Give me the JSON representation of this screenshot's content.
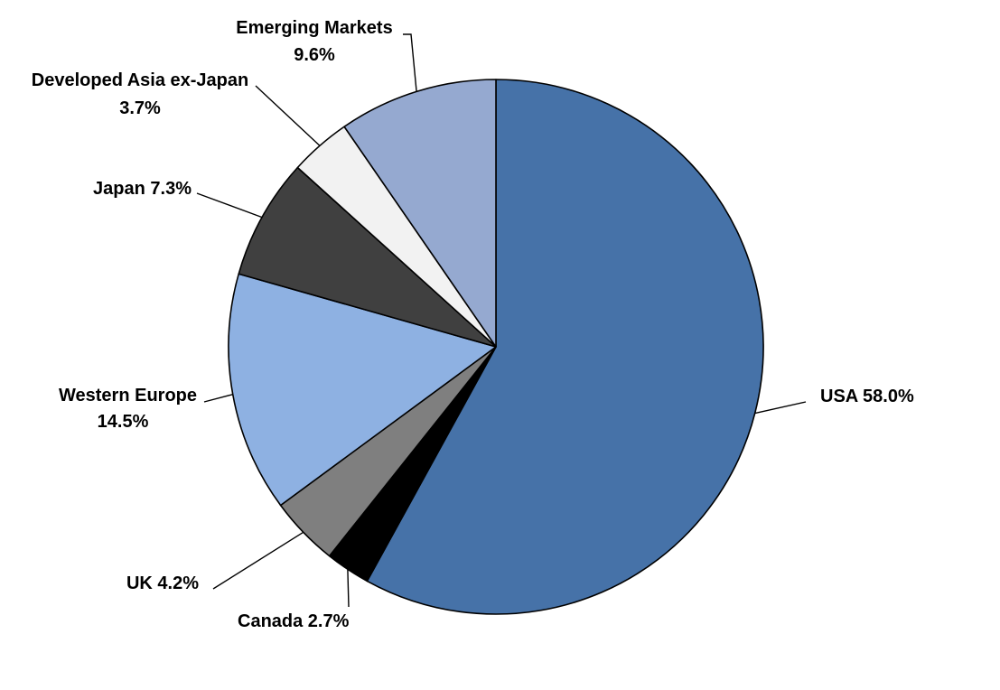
{
  "chart_data": {
    "type": "pie",
    "title": "",
    "start_angle_deg": 0,
    "direction": "clockwise",
    "slices": [
      {
        "name": "USA",
        "value": 58.0,
        "label": "USA 58.0%",
        "color": "#4672A8"
      },
      {
        "name": "Canada",
        "value": 2.7,
        "label": "Canada  2.7%",
        "color": "#000000"
      },
      {
        "name": "UK",
        "value": 4.2,
        "label": "UK 4.2%",
        "color": "#7F7F7F"
      },
      {
        "name": "Western Europe",
        "value": 14.5,
        "label": "Western Europe",
        "label_line2": "14.5%",
        "color": "#8EB1E2"
      },
      {
        "name": "Japan",
        "value": 7.3,
        "label": "Japan 7.3%",
        "color": "#404040"
      },
      {
        "name": "Developed Asia ex-Japan",
        "value": 3.7,
        "label": "Developed Asia ex-Japan",
        "label_line2": "3.7%",
        "color": "#F2F2F2"
      },
      {
        "name": "Emerging Markets",
        "value": 9.6,
        "label": "Emerging Markets",
        "label_line2": "9.6%",
        "color": "#95A9D0"
      }
    ]
  }
}
